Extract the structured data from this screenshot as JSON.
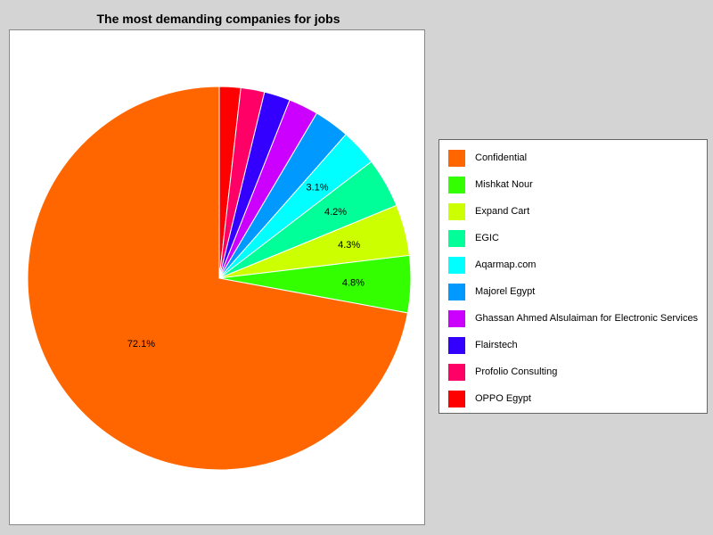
{
  "chart_data": {
    "type": "pie",
    "title": "The most demanding companies for jobs",
    "legend": "right",
    "slices": [
      {
        "label": "Confidential",
        "value": 72.1,
        "color": "#ff6600",
        "display": "72.1%"
      },
      {
        "label": "Mishkat Nour",
        "value": 4.8,
        "color": "#33ff00",
        "display": "4.8%"
      },
      {
        "label": "Expand Cart",
        "value": 4.3,
        "color": "#ccff00",
        "display": "4.3%"
      },
      {
        "label": "EGIC",
        "value": 4.2,
        "color": "#00ff99",
        "display": "4.2%"
      },
      {
        "label": "Aqarmap.com",
        "value": 3.1,
        "color": "#00ffff",
        "display": "3.1%"
      },
      {
        "label": "Majorel Egypt",
        "value": 3.0,
        "color": "#0099ff",
        "display": ""
      },
      {
        "label": "Ghassan Ahmed Alsulaiman for Electronic Services",
        "value": 2.5,
        "color": "#cc00ff",
        "display": ""
      },
      {
        "label": "Flairstech",
        "value": 2.2,
        "color": "#3300ff",
        "display": ""
      },
      {
        "label": "Profolio Consulting",
        "value": 2.0,
        "color": "#ff0066",
        "display": ""
      },
      {
        "label": "OPPO Egypt",
        "value": 1.8,
        "color": "#ff0000",
        "display": ""
      }
    ]
  }
}
